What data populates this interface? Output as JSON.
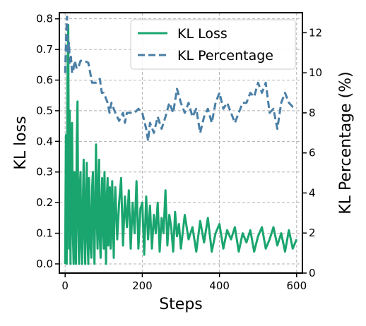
{
  "chart_data": {
    "type": "line",
    "title": "",
    "xlabel": "Steps",
    "ylabel_left": "KL loss",
    "ylabel_right": "KL Percentage (%)",
    "xlim": [
      -15,
      615
    ],
    "ylim_left": [
      -0.03,
      0.82
    ],
    "ylim_right": [
      0,
      13
    ],
    "x_ticks": [
      0,
      200,
      400,
      600
    ],
    "y_ticks_left": [
      0.0,
      0.1,
      0.2,
      0.3,
      0.4,
      0.5,
      0.6,
      0.7,
      0.8
    ],
    "y_ticks_left_labels": [
      "0.0",
      "0.1",
      "0.2",
      "0.3",
      "0.4",
      "0.5",
      "0.6",
      "0.7",
      "0.8"
    ],
    "y_ticks_right": [
      0,
      2,
      4,
      6,
      8,
      10,
      12
    ],
    "grid": true,
    "legend_position": "top-right",
    "series": [
      {
        "name": "KL Loss",
        "axis": "left",
        "color": "#1aa56e",
        "style": "solid",
        "x": [
          0,
          2,
          4,
          6,
          8,
          10,
          12,
          14,
          16,
          18,
          20,
          22,
          24,
          26,
          28,
          30,
          32,
          34,
          36,
          38,
          40,
          42,
          44,
          46,
          48,
          50,
          52,
          54,
          56,
          58,
          60,
          62,
          64,
          66,
          68,
          70,
          72,
          74,
          76,
          78,
          80,
          82,
          84,
          86,
          88,
          90,
          92,
          94,
          96,
          98,
          100,
          102,
          104,
          106,
          108,
          110,
          112,
          114,
          116,
          118,
          120,
          122,
          124,
          126,
          128,
          130,
          135,
          140,
          145,
          150,
          155,
          160,
          165,
          170,
          175,
          180,
          185,
          190,
          195,
          200,
          205,
          210,
          215,
          220,
          225,
          230,
          235,
          240,
          245,
          250,
          255,
          260,
          265,
          270,
          275,
          280,
          285,
          290,
          295,
          300,
          310,
          320,
          330,
          340,
          350,
          360,
          370,
          380,
          390,
          400,
          410,
          420,
          430,
          440,
          450,
          460,
          470,
          480,
          490,
          500,
          510,
          520,
          530,
          540,
          550,
          560,
          570,
          580,
          590,
          600
        ],
        "values": [
          0.0,
          0.42,
          0.0,
          0.6,
          0.78,
          0.05,
          0.5,
          0.0,
          0.35,
          0.46,
          0.1,
          0.0,
          0.3,
          0.08,
          0.0,
          0.4,
          0.53,
          0.12,
          0.0,
          0.25,
          0.3,
          0.05,
          0.0,
          0.2,
          0.34,
          0.1,
          0.0,
          0.22,
          0.33,
          0.08,
          0.0,
          0.28,
          0.18,
          0.05,
          0.02,
          0.25,
          0.3,
          0.1,
          0.0,
          0.2,
          0.39,
          0.15,
          0.05,
          0.25,
          0.34,
          0.08,
          0.02,
          0.2,
          0.28,
          0.1,
          0.05,
          0.3,
          0.12,
          0.0,
          0.22,
          0.28,
          0.06,
          0.15,
          0.25,
          0.05,
          0.1,
          0.27,
          0.15,
          0.02,
          0.18,
          0.25,
          0.08,
          0.2,
          0.28,
          0.06,
          0.22,
          0.12,
          0.24,
          0.05,
          0.2,
          0.1,
          0.27,
          0.05,
          0.18,
          0.2,
          0.03,
          0.22,
          0.08,
          0.19,
          0.05,
          0.16,
          0.1,
          0.2,
          0.04,
          0.15,
          0.1,
          0.24,
          0.06,
          0.16,
          0.12,
          0.04,
          0.17,
          0.09,
          0.13,
          0.05,
          0.16,
          0.08,
          0.12,
          0.04,
          0.14,
          0.07,
          0.15,
          0.04,
          0.1,
          0.13,
          0.05,
          0.11,
          0.08,
          0.12,
          0.04,
          0.1,
          0.07,
          0.11,
          0.04,
          0.09,
          0.12,
          0.05,
          0.08,
          0.12,
          0.06,
          0.1,
          0.04,
          0.11,
          0.05,
          0.08
        ]
      },
      {
        "name": "KL Percentage",
        "axis": "right",
        "color": "#4a7fa6",
        "style": "dashed",
        "x": [
          0,
          3,
          5,
          7,
          10,
          12,
          15,
          18,
          20,
          25,
          30,
          35,
          40,
          50,
          60,
          70,
          80,
          90,
          95,
          100,
          110,
          115,
          120,
          130,
          140,
          150,
          155,
          160,
          170,
          180,
          190,
          200,
          210,
          215,
          220,
          230,
          240,
          250,
          260,
          270,
          280,
          290,
          300,
          310,
          320,
          330,
          340,
          350,
          360,
          370,
          380,
          390,
          400,
          410,
          420,
          430,
          440,
          450,
          460,
          470,
          480,
          490,
          500,
          510,
          520,
          530,
          540,
          550,
          560,
          570,
          580,
          590,
          600
        ],
        "values": [
          10.0,
          12.0,
          12.8,
          11.0,
          11.5,
          10.5,
          10.8,
          10.0,
          10.0,
          10.6,
          10.2,
          10.3,
          10.6,
          10.6,
          10.5,
          9.5,
          9.5,
          9.7,
          9.0,
          9.0,
          8.5,
          8.0,
          8.5,
          8.0,
          7.6,
          8.0,
          7.5,
          8.0,
          8.0,
          8.0,
          8.2,
          8.0,
          7.2,
          6.6,
          7.5,
          7.0,
          7.8,
          7.2,
          7.8,
          8.5,
          8.0,
          9.2,
          8.5,
          8.0,
          8.5,
          7.8,
          8.2,
          7.0,
          7.8,
          8.2,
          7.5,
          8.5,
          9.0,
          8.2,
          8.5,
          8.0,
          7.5,
          8.0,
          8.5,
          8.5,
          9.0,
          8.8,
          9.5,
          9.0,
          9.5,
          8.0,
          8.2,
          7.2,
          8.5,
          9.0,
          8.5,
          8.3,
          8.3
        ]
      }
    ]
  }
}
